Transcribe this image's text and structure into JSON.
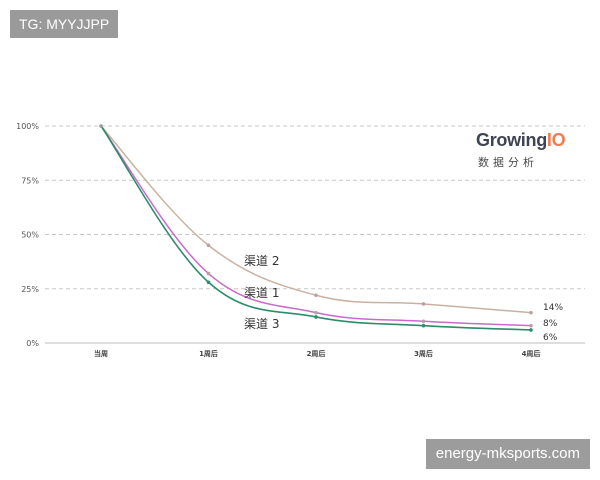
{
  "watermarks": {
    "top_left": "TG: MYYJJPP",
    "bottom_right": "energy-mksports.com"
  },
  "logo": {
    "main": "Growing",
    "accent": "IO",
    "sub": "数据分析"
  },
  "chart_data": {
    "type": "line",
    "categories": [
      "当周",
      "1周后",
      "2周后",
      "3周后",
      "4周后"
    ],
    "ylim": [
      0,
      100
    ],
    "yticks": [
      0,
      25,
      50,
      75,
      100
    ],
    "ytick_labels": [
      "0%",
      "25%",
      "50%",
      "75%",
      "100%"
    ],
    "grid": "horizontal-dashed",
    "series": [
      {
        "name": "渠道 2",
        "values": [
          100,
          45,
          22,
          18,
          14
        ],
        "color": "#c9b1a1",
        "end_label": "14%"
      },
      {
        "name": "渠道 1",
        "values": [
          100,
          32,
          14,
          10,
          8
        ],
        "color": "#c96bc9",
        "end_label": "8%"
      },
      {
        "name": "渠道 3",
        "values": [
          100,
          28,
          12,
          8,
          6
        ],
        "color": "#2e8b6c",
        "end_label": "6%"
      }
    ]
  }
}
